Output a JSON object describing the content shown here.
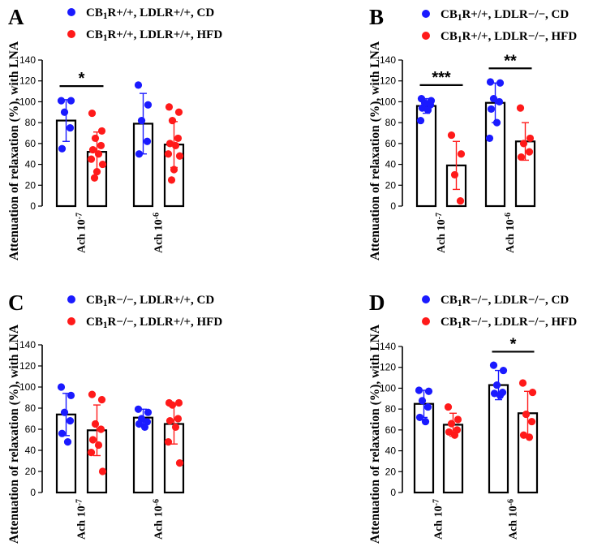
{
  "figure": {
    "colors": {
      "cd": "#1a1aff",
      "hfd": "#ff1a1a",
      "axis": "#000000"
    }
  },
  "chart_data": [
    {
      "panel": "A",
      "type": "bar",
      "ylabel": "Attenuation of relaxation (%), with LNA",
      "ylim": [
        0,
        140
      ],
      "yticks": [
        0,
        20,
        40,
        60,
        80,
        100,
        120,
        140
      ],
      "categories": [
        "Ach 10⁻⁷",
        "Ach 10⁻⁶"
      ],
      "legend": [
        "CB₁R+/+, LDLR+/+, CD",
        "CB₁R+/+, LDLR+/+, HFD"
      ],
      "series": [
        {
          "name": "CB₁R+/+, LDLR+/+, CD",
          "color": "#1a1aff",
          "means": [
            82,
            79
          ],
          "sd": [
            20,
            29
          ],
          "points": [
            [
              101,
              101,
              90,
              75,
              55
            ],
            [
              116,
              97,
              82,
              62,
              50
            ]
          ]
        },
        {
          "name": "CB₁R+/+, LDLR+/+, HFD",
          "color": "#ff1a1a",
          "means": [
            52,
            59
          ],
          "sd": [
            19,
            22
          ],
          "points": [
            [
              89,
              72,
              65,
              58,
              54,
              50,
              45,
              40,
              33,
              27
            ],
            [
              95,
              90,
              82,
              65,
              60,
              58,
              50,
              48,
              35,
              25
            ]
          ]
        }
      ],
      "significance": [
        {
          "category": 0,
          "label": "*"
        }
      ]
    },
    {
      "panel": "B",
      "type": "bar",
      "ylabel": "Attenuation of relaxation (%), with LNA",
      "ylim": [
        0,
        140
      ],
      "yticks": [
        0,
        20,
        40,
        60,
        80,
        100,
        120,
        140
      ],
      "categories": [
        "Ach 10⁻⁷",
        "Ach 10⁻⁶"
      ],
      "legend": [
        "CB₁R+/+, LDLR−/−, CD",
        "CB₁R+/+, LDLR−/−, HFD"
      ],
      "series": [
        {
          "name": "CB₁R+/+, LDLR−/−, CD",
          "color": "#1a1aff",
          "means": [
            96,
            99
          ],
          "sd": [
            7,
            19
          ],
          "points": [
            [
              103,
              101,
              99,
              97,
              94,
              92,
              82
            ],
            [
              119,
              118,
              103,
              100,
              93,
              80,
              65
            ]
          ]
        },
        {
          "name": "CB₁R+/+, LDLR−/−, HFD",
          "color": "#ff1a1a",
          "means": [
            39,
            62
          ],
          "sd": [
            23,
            18
          ],
          "points": [
            [
              68,
              50,
              30,
              5
            ],
            [
              94,
              65,
              60,
              52,
              47
            ]
          ]
        }
      ],
      "significance": [
        {
          "category": 0,
          "label": "***"
        },
        {
          "category": 1,
          "label": "**"
        }
      ]
    },
    {
      "panel": "C",
      "type": "bar",
      "ylabel": "Attenuation of relaxation (%), with LNA",
      "ylim": [
        0,
        140
      ],
      "yticks": [
        0,
        20,
        40,
        60,
        80,
        100,
        120,
        140
      ],
      "categories": [
        "Ach 10⁻⁷",
        "Ach 10⁻⁶"
      ],
      "legend": [
        "CB₁R−/−, LDLR+/+, CD",
        "CB₁R−/−, LDLR+/+, HFD"
      ],
      "series": [
        {
          "name": "CB₁R−/−, LDLR+/+, CD",
          "color": "#1a1aff",
          "means": [
            74,
            71
          ],
          "sd": [
            20,
            8
          ],
          "points": [
            [
              100,
              92,
              76,
              68,
              56,
              48
            ],
            [
              79,
              76,
              70,
              67,
              65,
              62
            ]
          ]
        },
        {
          "name": "CB₁R−/−, LDLR+/+, HFD",
          "color": "#ff1a1a",
          "means": [
            59,
            65
          ],
          "sd": [
            24,
            19
          ],
          "points": [
            [
              93,
              88,
              65,
              60,
              50,
              45,
              38,
              20
            ],
            [
              85,
              85,
              83,
              70,
              68,
              62,
              48,
              28
            ]
          ]
        }
      ],
      "significance": []
    },
    {
      "panel": "D",
      "type": "bar",
      "ylabel": "Attenuation of relaxation (%), with LNA",
      "ylim": [
        0,
        140
      ],
      "yticks": [
        0,
        20,
        40,
        60,
        80,
        100,
        120,
        140
      ],
      "categories": [
        "Ach 10⁻⁷",
        "Ach 10⁻⁶"
      ],
      "legend": [
        "CB₁R−/−, LDLR−/−, CD",
        "CB₁R−/−, LDLR−/−, HFD"
      ],
      "series": [
        {
          "name": "CB₁R−/−, LDLR−/−, CD",
          "color": "#1a1aff",
          "means": [
            85,
            103
          ],
          "sd": [
            13,
            14
          ],
          "points": [
            [
              98,
              97,
              88,
              82,
              72,
              68
            ],
            [
              122,
              117,
              103,
              96,
              95,
              93
            ]
          ]
        },
        {
          "name": "CB₁R−/−, LDLR−/−, HFD",
          "color": "#ff1a1a",
          "means": [
            65,
            76
          ],
          "sd": [
            11,
            21
          ],
          "points": [
            [
              82,
              70,
              66,
              60,
              58,
              55
            ],
            [
              105,
              96,
              75,
              68,
              55,
              53
            ]
          ]
        }
      ],
      "significance": [
        {
          "category": 1,
          "label": "*"
        }
      ]
    }
  ]
}
